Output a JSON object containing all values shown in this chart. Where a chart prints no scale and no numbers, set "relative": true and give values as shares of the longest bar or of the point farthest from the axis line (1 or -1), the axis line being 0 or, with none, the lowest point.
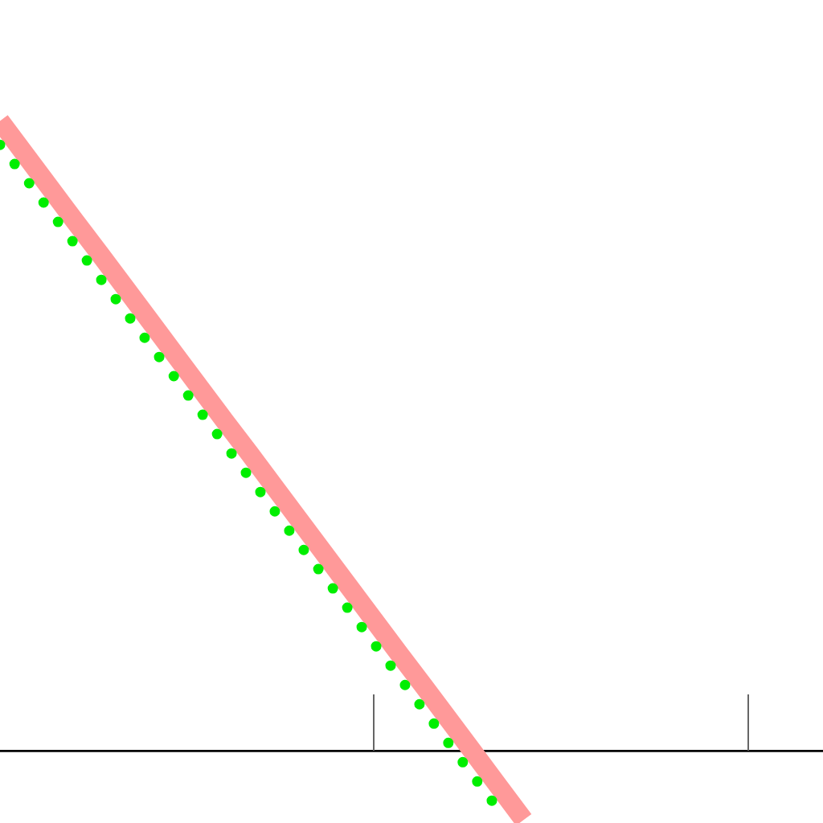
{
  "chart_data": {
    "type": "line",
    "relative": true,
    "tick_labels": false,
    "categories": [
      null,
      null,
      null,
      null,
      null,
      null,
      null,
      null,
      null,
      null,
      null,
      null,
      null,
      null,
      null,
      null,
      null,
      null,
      null,
      null,
      null,
      null,
      null,
      null,
      null,
      null,
      null,
      null,
      null,
      null,
      null,
      null,
      null,
      null
    ],
    "series": [
      {
        "color": "#ff9999",
        "line_style": "solid",
        "values": [
          1,
          0.947,
          0.894,
          0.841,
          0.789,
          0.736,
          0.683,
          0.63,
          0.577,
          0.524,
          0.472,
          0.419,
          0.366,
          0.313,
          0.26,
          0.207,
          0.154,
          0.102,
          0.049,
          -0.004,
          -0.057,
          -0.11,
          null,
          null,
          null,
          null,
          null,
          null,
          null,
          null,
          null,
          null,
          null,
          null
        ]
      },
      {
        "color": "#00ee00",
        "line_style": "dotted",
        "values": [
          0.962,
          0.91,
          0.857,
          0.804,
          0.751,
          0.698,
          0.645,
          0.593,
          0.54,
          0.487,
          0.434,
          0.381,
          0.328,
          0.276,
          0.223,
          0.17,
          0.117,
          0.064,
          0.011,
          -0.042,
          -0.094,
          null,
          null,
          null,
          null,
          null,
          null,
          null,
          null,
          null,
          null,
          null,
          null,
          null
        ]
      }
    ]
  }
}
